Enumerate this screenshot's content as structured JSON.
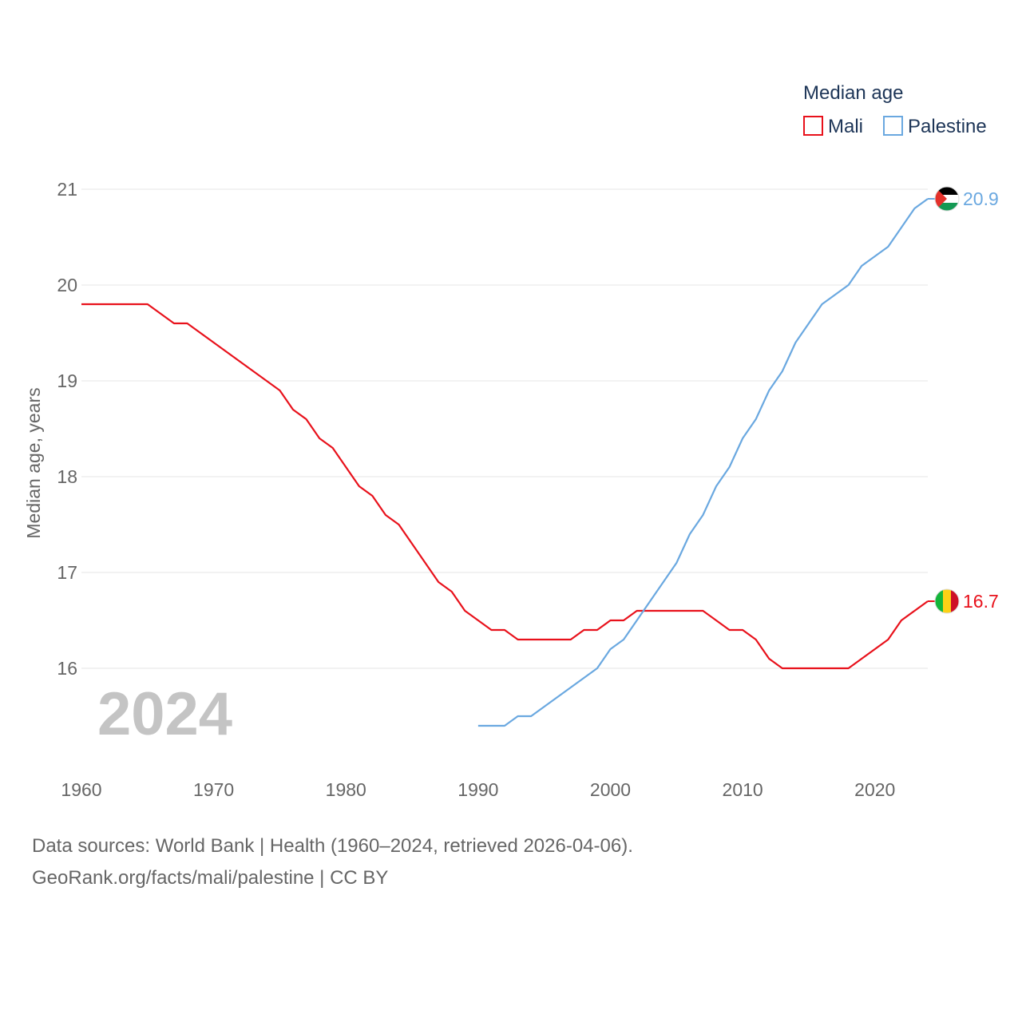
{
  "chart_data": {
    "type": "line",
    "title": "Median age",
    "xlabel": "",
    "ylabel": "Median age, years",
    "xlim": [
      1960,
      2024
    ],
    "ylim": [
      15.2,
      21.3
    ],
    "x_ticks": [
      1960,
      1970,
      1980,
      1990,
      2000,
      2010,
      2020
    ],
    "y_ticks": [
      16,
      17,
      18,
      19,
      20,
      21
    ],
    "grid": true,
    "legend_position": "top-right",
    "current_year": "2024",
    "series": [
      {
        "name": "Mali",
        "color": "#e8111b",
        "end_label": "16.7",
        "flag_icon": "mali-flag-icon",
        "points": [
          [
            1960,
            19.8
          ],
          [
            1961,
            19.8
          ],
          [
            1962,
            19.8
          ],
          [
            1963,
            19.8
          ],
          [
            1964,
            19.8
          ],
          [
            1965,
            19.8
          ],
          [
            1966,
            19.7
          ],
          [
            1967,
            19.6
          ],
          [
            1968,
            19.6
          ],
          [
            1969,
            19.5
          ],
          [
            1970,
            19.4
          ],
          [
            1971,
            19.3
          ],
          [
            1972,
            19.2
          ],
          [
            1973,
            19.1
          ],
          [
            1974,
            19.0
          ],
          [
            1975,
            18.9
          ],
          [
            1976,
            18.7
          ],
          [
            1977,
            18.6
          ],
          [
            1978,
            18.4
          ],
          [
            1979,
            18.3
          ],
          [
            1980,
            18.1
          ],
          [
            1981,
            17.9
          ],
          [
            1982,
            17.8
          ],
          [
            1983,
            17.6
          ],
          [
            1984,
            17.5
          ],
          [
            1985,
            17.3
          ],
          [
            1986,
            17.1
          ],
          [
            1987,
            16.9
          ],
          [
            1988,
            16.8
          ],
          [
            1989,
            16.6
          ],
          [
            1990,
            16.5
          ],
          [
            1991,
            16.4
          ],
          [
            1992,
            16.4
          ],
          [
            1993,
            16.3
          ],
          [
            1994,
            16.3
          ],
          [
            1995,
            16.3
          ],
          [
            1996,
            16.3
          ],
          [
            1997,
            16.3
          ],
          [
            1998,
            16.4
          ],
          [
            1999,
            16.4
          ],
          [
            2000,
            16.5
          ],
          [
            2001,
            16.5
          ],
          [
            2002,
            16.6
          ],
          [
            2003,
            16.6
          ],
          [
            2004,
            16.6
          ],
          [
            2005,
            16.6
          ],
          [
            2006,
            16.6
          ],
          [
            2007,
            16.6
          ],
          [
            2008,
            16.5
          ],
          [
            2009,
            16.4
          ],
          [
            2010,
            16.4
          ],
          [
            2011,
            16.3
          ],
          [
            2012,
            16.1
          ],
          [
            2013,
            16.0
          ],
          [
            2014,
            16.0
          ],
          [
            2015,
            16.0
          ],
          [
            2016,
            16.0
          ],
          [
            2017,
            16.0
          ],
          [
            2018,
            16.0
          ],
          [
            2019,
            16.1
          ],
          [
            2020,
            16.2
          ],
          [
            2021,
            16.3
          ],
          [
            2022,
            16.5
          ],
          [
            2023,
            16.6
          ],
          [
            2024,
            16.7
          ]
        ]
      },
      {
        "name": "Palestine",
        "color": "#6aa8e0",
        "end_label": "20.9",
        "flag_icon": "palestine-flag-icon",
        "points": [
          [
            1990,
            15.4
          ],
          [
            1991,
            15.4
          ],
          [
            1992,
            15.4
          ],
          [
            1993,
            15.5
          ],
          [
            1994,
            15.5
          ],
          [
            1995,
            15.6
          ],
          [
            1996,
            15.7
          ],
          [
            1997,
            15.8
          ],
          [
            1998,
            15.9
          ],
          [
            1999,
            16.0
          ],
          [
            2000,
            16.2
          ],
          [
            2001,
            16.3
          ],
          [
            2002,
            16.5
          ],
          [
            2003,
            16.7
          ],
          [
            2004,
            16.9
          ],
          [
            2005,
            17.1
          ],
          [
            2006,
            17.4
          ],
          [
            2007,
            17.6
          ],
          [
            2008,
            17.9
          ],
          [
            2009,
            18.1
          ],
          [
            2010,
            18.4
          ],
          [
            2011,
            18.6
          ],
          [
            2012,
            18.9
          ],
          [
            2013,
            19.1
          ],
          [
            2014,
            19.4
          ],
          [
            2015,
            19.6
          ],
          [
            2016,
            19.8
          ],
          [
            2017,
            19.9
          ],
          [
            2018,
            20.0
          ],
          [
            2019,
            20.2
          ],
          [
            2020,
            20.3
          ],
          [
            2021,
            20.4
          ],
          [
            2022,
            20.6
          ],
          [
            2023,
            20.8
          ],
          [
            2024,
            20.9
          ]
        ]
      }
    ]
  },
  "legend": {
    "title": "Median age",
    "items": [
      "Mali",
      "Palestine"
    ]
  },
  "footer": {
    "sources": "Data sources: World Bank | Health (1960–2024, retrieved 2026-04-06).",
    "attribution": "GeoRank.org/facts/mali/palestine | CC BY"
  }
}
